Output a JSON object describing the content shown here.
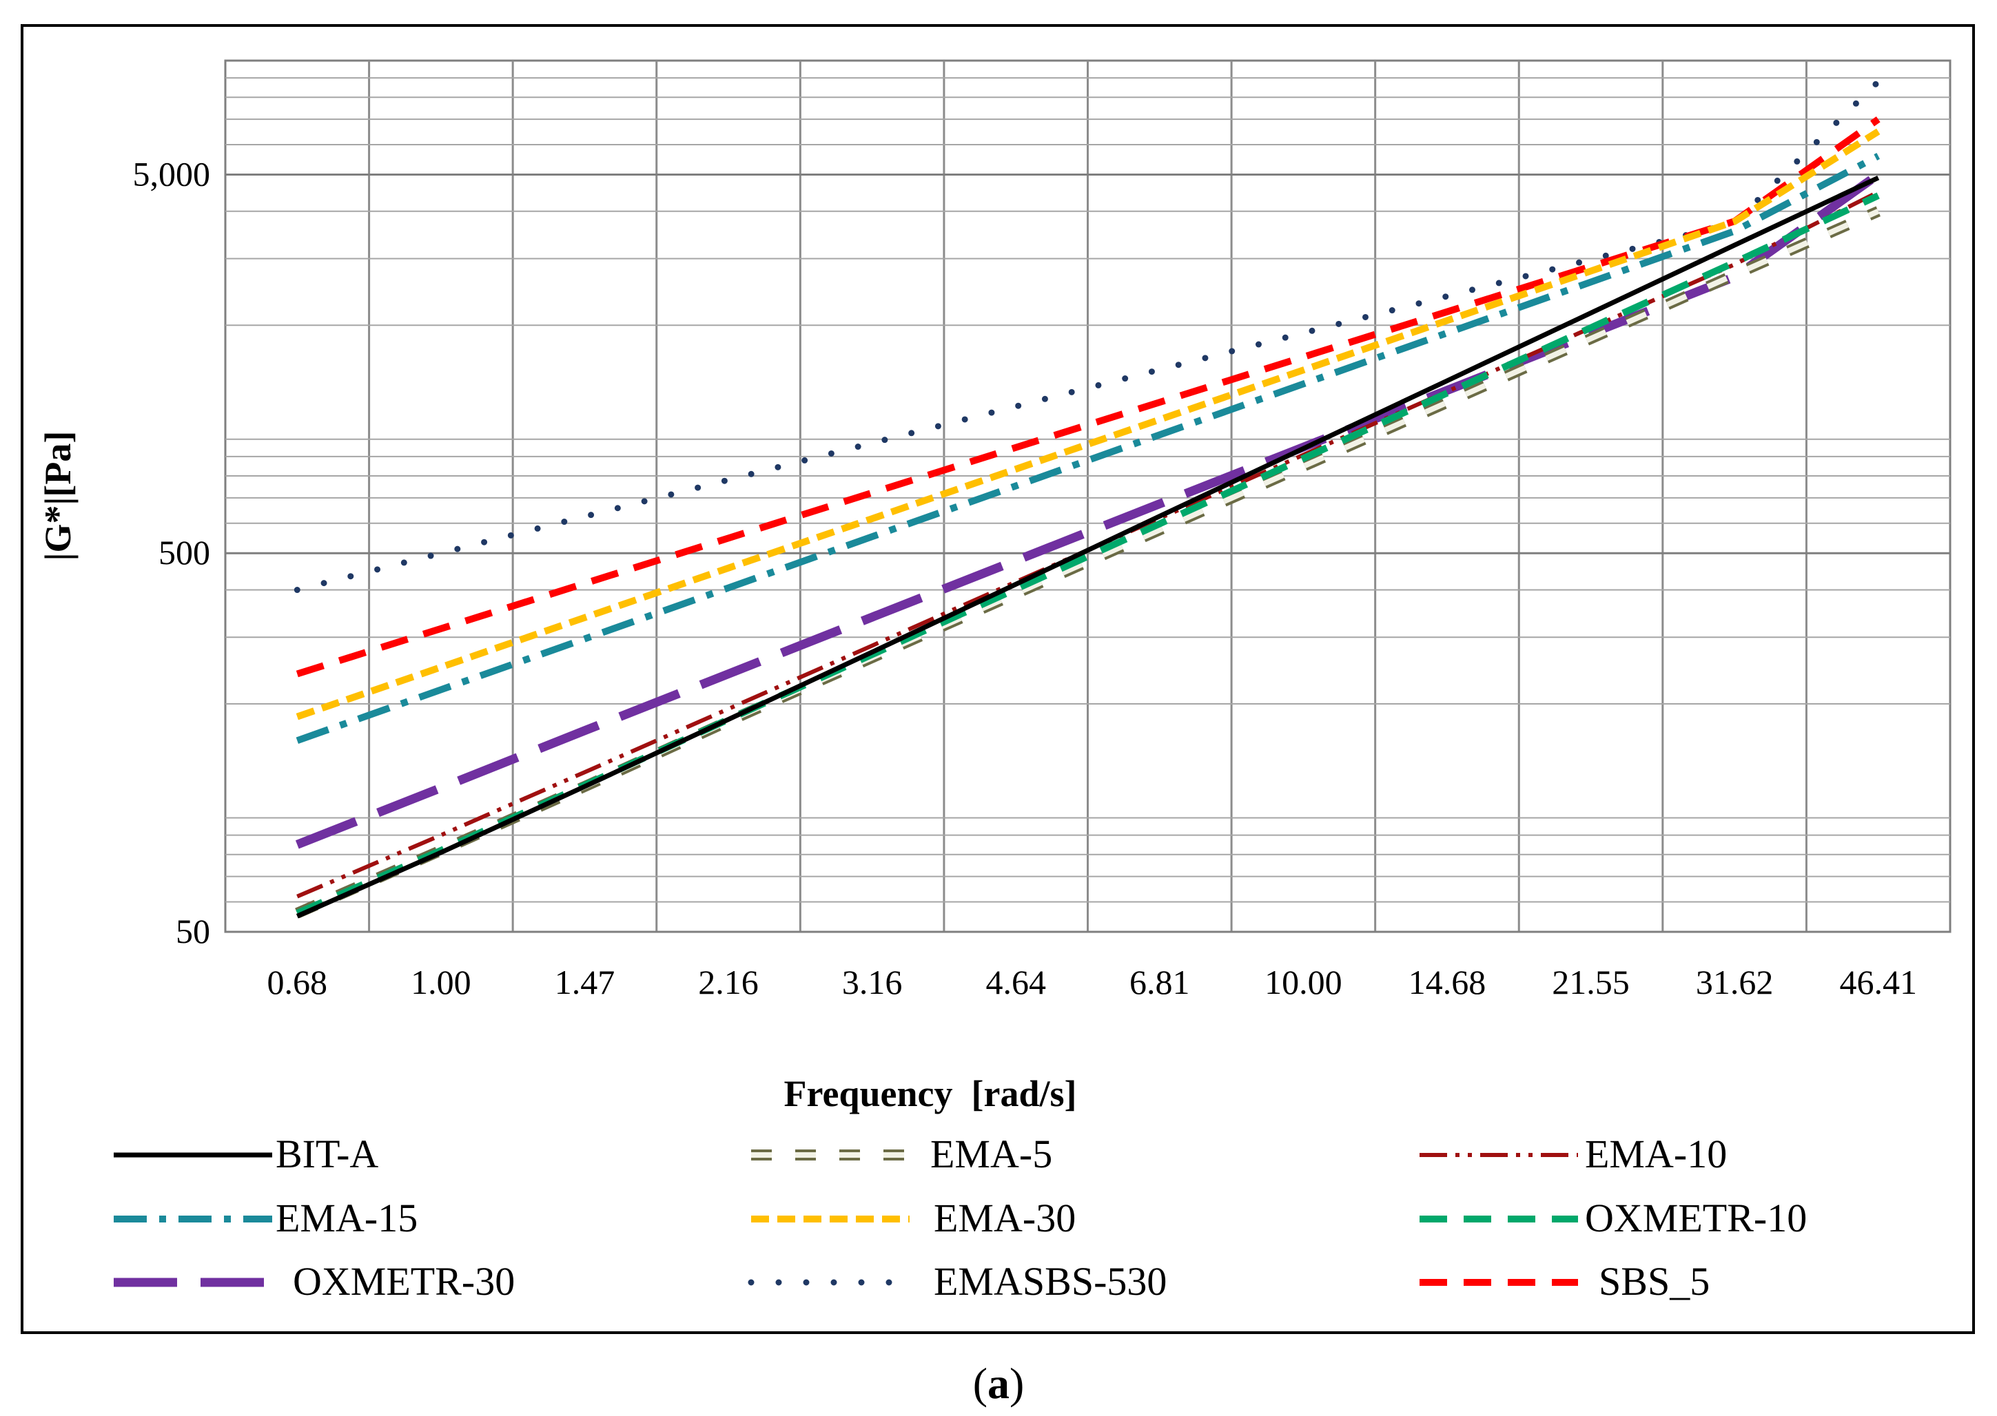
{
  "chart_data": {
    "type": "line",
    "title": "",
    "xlabel": "Frequency  [rad/s]",
    "ylabel": "|G*|[Pa]",
    "yscale": "log",
    "ylim": [
      50,
      10000
    ],
    "y_ticks": [
      50,
      500,
      5000
    ],
    "y_tick_labels": [
      "50",
      "500",
      "5,000"
    ],
    "categories": [
      "0.68",
      "1.00",
      "1.47",
      "2.16",
      "3.16",
      "4.64",
      "6.81",
      "10.00",
      "14.68",
      "21.55",
      "31.62",
      "46.41"
    ],
    "x": [
      0.68,
      1.0,
      1.47,
      2.16,
      3.16,
      4.64,
      6.81,
      10.0,
      14.68,
      21.55,
      31.62,
      46.41
    ],
    "grid": true,
    "legend_position": "bottom",
    "series": [
      {
        "name": "BIT-A",
        "color": "#000000",
        "style": "solid",
        "values": [
          55,
          81,
          121,
          182,
          274,
          414,
          626,
          945,
          1427,
          2155,
          3255,
          4904
        ]
      },
      {
        "name": "EMA-5",
        "color": "#6b6b45",
        "style": "hollow-dash",
        "values": [
          56,
          82,
          121,
          180,
          265,
          391,
          576,
          848,
          1250,
          1844,
          2718,
          4000
        ]
      },
      {
        "name": "EMA-10",
        "color": "#a01010",
        "style": "dash-dot-dot",
        "values": [
          62,
          90,
          132,
          194,
          285,
          420,
          618,
          909,
          1337,
          1968,
          2895,
          4500
        ]
      },
      {
        "name": "EMA-15",
        "color": "#1a8a9a",
        "style": "dash-dot",
        "values": [
          160,
          218,
          297,
          405,
          553,
          753,
          1027,
          1400,
          1908,
          2601,
          3545,
          5600
        ]
      },
      {
        "name": "EMA-30",
        "color": "#ffbf00",
        "style": "short-dash",
        "values": [
          185,
          250,
          338,
          457,
          617,
          834,
          1127,
          1523,
          2058,
          2781,
          3758,
          6500
        ]
      },
      {
        "name": "OXMETR-10",
        "color": "#00a86b",
        "style": "dash",
        "values": [
          56,
          82,
          122,
          182,
          270,
          402,
          598,
          890,
          1324,
          1970,
          2930,
          4400
        ]
      },
      {
        "name": "OXMETR-30",
        "color": "#7030a0",
        "style": "long-dash",
        "values": [
          85,
          120,
          170,
          240,
          339,
          478,
          675,
          953,
          1346,
          1900,
          2683,
          5000
        ]
      },
      {
        "name": "EMASBS-530",
        "color": "#1f3864",
        "style": "dotted",
        "values": [
          400,
          500,
          625,
          781,
          977,
          1221,
          1527,
          1908,
          2386,
          2983,
          3729,
          8800
        ]
      },
      {
        "name": "SBS_5",
        "color": "#ff0000",
        "style": "dash",
        "values": [
          240,
          316,
          416,
          548,
          722,
          951,
          1252,
          1649,
          2171,
          2859,
          3764,
          7000
        ]
      }
    ]
  },
  "caption": "(a)",
  "caption_parts": {
    "open": "(",
    "letter": "a",
    "close": ")"
  }
}
